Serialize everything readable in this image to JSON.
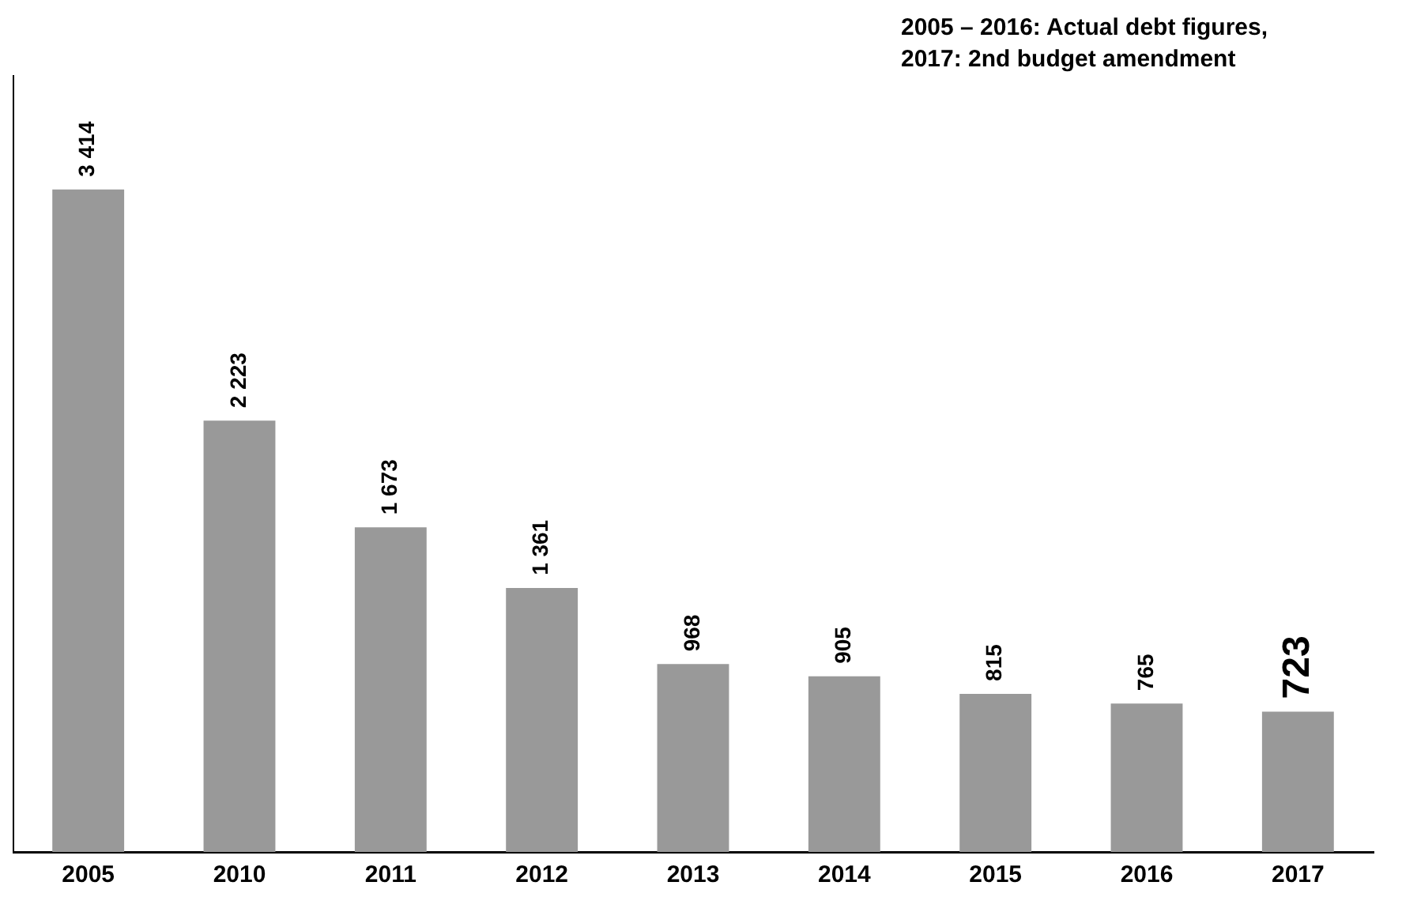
{
  "chart_data": {
    "type": "bar",
    "annotations": [
      "2005 – 2016: Actual debt figures,",
      "2017: 2nd budget amendment"
    ],
    "categories": [
      "2005",
      "2010",
      "2011",
      "2012",
      "2013",
      "2014",
      "2015",
      "2016",
      "2017"
    ],
    "values": [
      3414,
      2223,
      1673,
      1361,
      968,
      905,
      815,
      765,
      723
    ],
    "value_labels": [
      "3 414",
      "2 223",
      "1 673",
      "1 361",
      "968",
      "905",
      "815",
      "765",
      "723"
    ],
    "color": "#999999",
    "grid": false,
    "legend": false
  }
}
